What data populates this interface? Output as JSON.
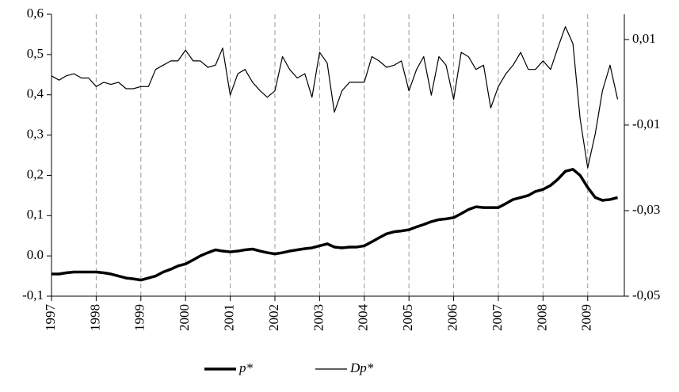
{
  "chart_data": {
    "type": "line",
    "x": [
      1997.0,
      1997.17,
      1997.33,
      1997.5,
      1997.67,
      1997.83,
      1998.0,
      1998.17,
      1998.33,
      1998.5,
      1998.67,
      1998.83,
      1999.0,
      1999.17,
      1999.33,
      1999.5,
      1999.67,
      1999.83,
      2000.0,
      2000.17,
      2000.33,
      2000.5,
      2000.67,
      2000.83,
      2001.0,
      2001.17,
      2001.33,
      2001.5,
      2001.67,
      2001.83,
      2002.0,
      2002.17,
      2002.33,
      2002.5,
      2002.67,
      2002.83,
      2003.0,
      2003.17,
      2003.33,
      2003.5,
      2003.67,
      2003.83,
      2004.0,
      2004.17,
      2004.33,
      2004.5,
      2004.67,
      2004.83,
      2005.0,
      2005.17,
      2005.33,
      2005.5,
      2005.67,
      2005.83,
      2006.0,
      2006.17,
      2006.33,
      2006.5,
      2006.67,
      2006.83,
      2007.0,
      2007.17,
      2007.33,
      2007.5,
      2007.67,
      2007.83,
      2008.0,
      2008.17,
      2008.33,
      2008.5,
      2008.67,
      2008.83,
      2009.0,
      2009.17,
      2009.33,
      2009.5,
      2009.67
    ],
    "series": [
      {
        "name": "p*",
        "color": "#000000",
        "width": 3.5,
        "values": [
          -0.045,
          -0.045,
          -0.042,
          -0.04,
          -0.04,
          -0.04,
          -0.04,
          -0.042,
          -0.045,
          -0.05,
          -0.055,
          -0.057,
          -0.06,
          -0.055,
          -0.05,
          -0.04,
          -0.033,
          -0.025,
          -0.02,
          -0.01,
          0.0,
          0.008,
          0.015,
          0.012,
          0.01,
          0.012,
          0.015,
          0.017,
          0.012,
          0.008,
          0.005,
          0.008,
          0.012,
          0.015,
          0.018,
          0.02,
          0.025,
          0.03,
          0.022,
          0.02,
          0.022,
          0.022,
          0.025,
          0.035,
          0.045,
          0.055,
          0.06,
          0.062,
          0.065,
          0.072,
          0.078,
          0.085,
          0.09,
          0.092,
          0.095,
          0.105,
          0.115,
          0.122,
          0.12,
          0.12,
          0.12,
          0.13,
          0.14,
          0.145,
          0.15,
          0.16,
          0.165,
          0.175,
          0.19,
          0.21,
          0.215,
          0.2,
          0.17,
          0.145,
          0.138,
          0.14,
          0.145
        ]
      },
      {
        "name": "Dp*",
        "color": "#000000",
        "width": 1.2,
        "axis": "y2",
        "values": [
          0.0015,
          0.0005,
          0.0015,
          0.002,
          0.001,
          0.001,
          -0.001,
          0.0,
          -0.0005,
          0.0,
          -0.0015,
          -0.0015,
          -0.001,
          -0.001,
          0.003,
          0.004,
          0.005,
          0.005,
          0.0075,
          0.005,
          0.005,
          0.0035,
          0.004,
          0.008,
          -0.003,
          0.002,
          0.003,
          0.0,
          -0.002,
          -0.0035,
          -0.002,
          0.006,
          0.003,
          0.001,
          0.002,
          -0.0035,
          0.007,
          0.0045,
          -0.007,
          -0.002,
          0.0,
          0.0,
          0.0,
          0.006,
          0.005,
          0.0035,
          0.004,
          0.005,
          -0.002,
          0.003,
          0.006,
          -0.003,
          0.006,
          0.004,
          -0.004,
          0.007,
          0.006,
          0.003,
          0.004,
          -0.006,
          -0.001,
          0.002,
          0.004,
          0.007,
          0.003,
          0.003,
          0.005,
          0.003,
          0.008,
          0.013,
          0.009,
          -0.0085,
          -0.02,
          -0.012,
          -0.002,
          0.004,
          -0.004
        ]
      }
    ],
    "xlim": [
      1997,
      2009.82
    ],
    "xticks": [
      1997,
      1998,
      1999,
      2000,
      2001,
      2002,
      2003,
      2004,
      2005,
      2006,
      2007,
      2008,
      2009
    ],
    "ylim": [
      -0.1,
      0.6
    ],
    "yticks": [
      {
        "value": -0.1,
        "label": "-0,1"
      },
      {
        "value": 0,
        "label": "0.0"
      },
      {
        "value": 0.1,
        "label": "0,1"
      },
      {
        "value": 0.2,
        "label": "0,2"
      },
      {
        "value": 0.3,
        "label": "0,3"
      },
      {
        "value": 0.4,
        "label": "0,4"
      },
      {
        "value": 0.5,
        "label": "0,5"
      },
      {
        "value": 0.6,
        "label": "0,6"
      }
    ],
    "y2lim": [
      -0.05,
      0.0159
    ],
    "y2ticks": [
      {
        "value": -0.05,
        "label": "-0,05"
      },
      {
        "value": -0.03,
        "label": "-0,03"
      },
      {
        "value": -0.01,
        "label": "-0,01"
      },
      {
        "value": 0.01,
        "label": "0,01"
      }
    ],
    "grid": "x",
    "legend": "bottom"
  }
}
